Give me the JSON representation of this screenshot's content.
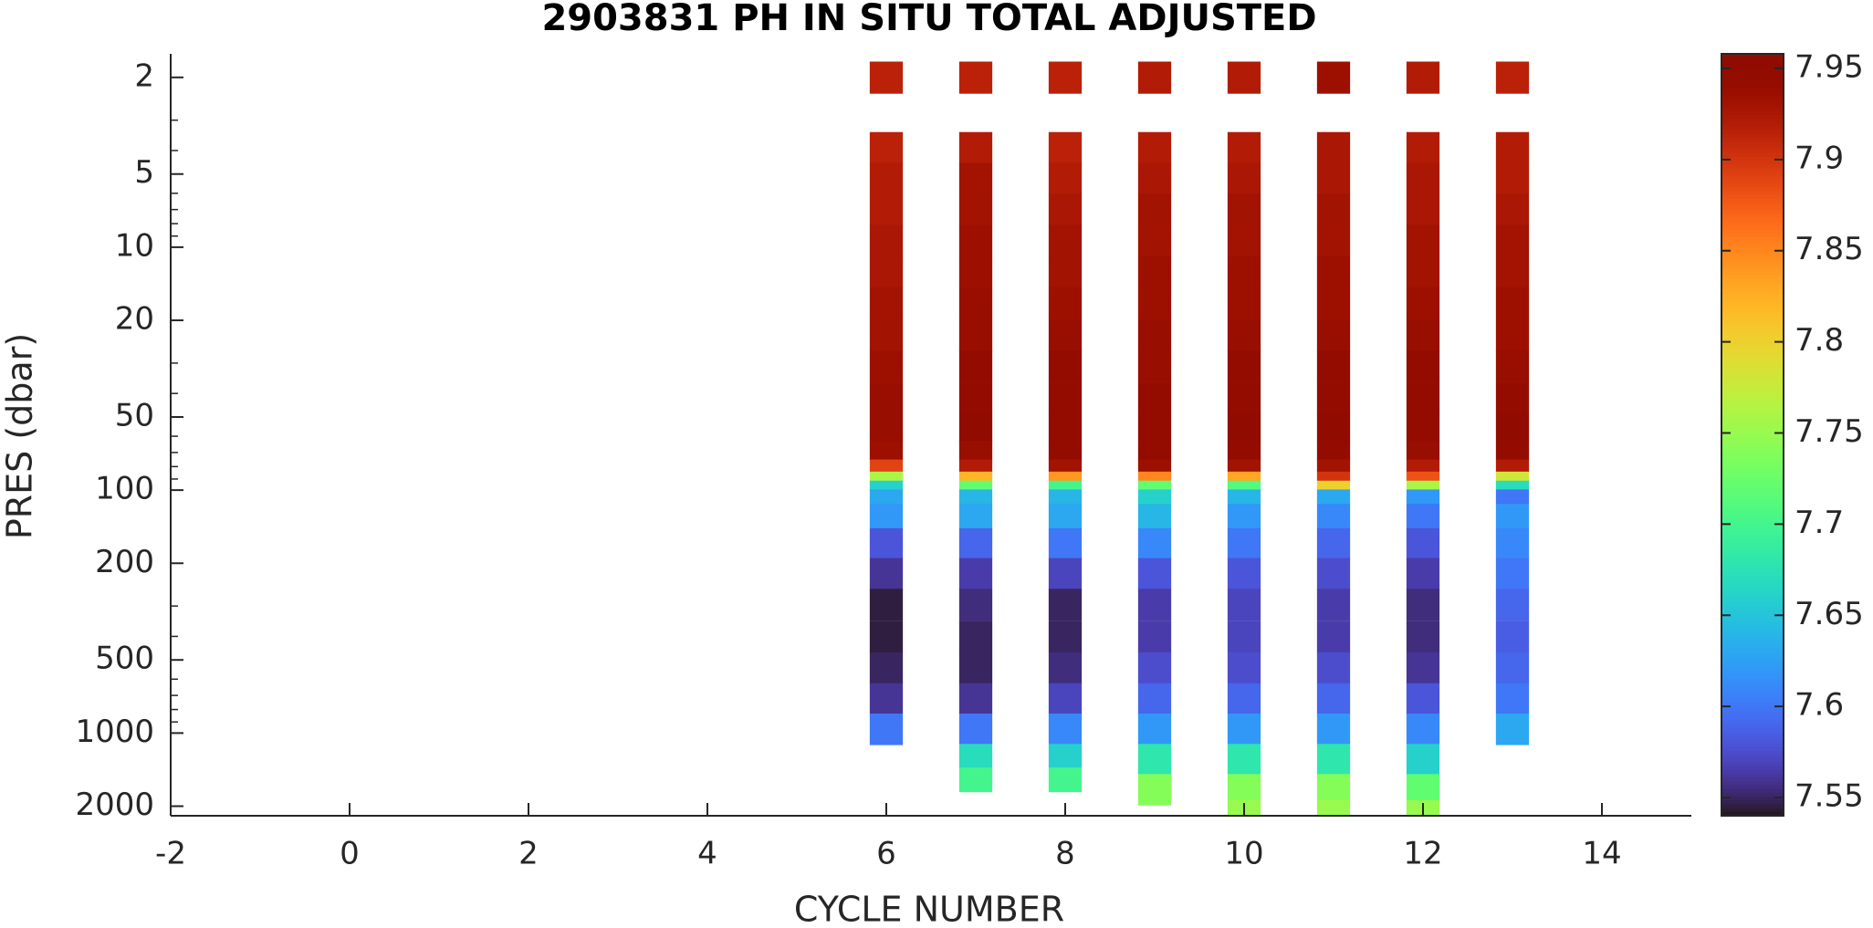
{
  "chart_data": {
    "type": "profile-heatmap",
    "title": "2903831  PH IN SITU TOTAL ADJUSTED",
    "x_label": "CYCLE NUMBER",
    "y_label": "PRES (dbar)",
    "xlim": [
      -2,
      15
    ],
    "xticks": [
      -2,
      0,
      2,
      4,
      6,
      8,
      10,
      12,
      14
    ],
    "ylim": [
      1.6,
      2190
    ],
    "yscale": "log",
    "yreversed": true,
    "yticks": [
      2,
      5,
      10,
      20,
      50,
      100,
      200,
      500,
      1000,
      2000
    ],
    "yminorticks": [
      3,
      4,
      6,
      7,
      8,
      9,
      30,
      40,
      60,
      70,
      80,
      90,
      300,
      400,
      600,
      700,
      800,
      900
    ],
    "colormap": "turbo",
    "clim": [
      7.54,
      7.958
    ],
    "cticks": [
      7.55,
      7.6,
      7.65,
      7.7,
      7.75,
      7.8,
      7.85,
      7.9,
      7.95
    ],
    "series": [
      {
        "x": 6,
        "pres": [
          2,
          3.9,
          5.2,
          7,
          9.4,
          12.6,
          17,
          23,
          31,
          42,
          56,
          70,
          80,
          88,
          95,
          104,
          125,
          165,
          220,
          295,
          400,
          540,
          720,
          960
        ],
        "values": [
          7.915,
          7.915,
          7.92,
          7.92,
          7.925,
          7.925,
          7.93,
          7.93,
          7.935,
          7.94,
          7.94,
          7.935,
          7.89,
          7.76,
          7.66,
          7.63,
          7.62,
          7.58,
          7.56,
          7.545,
          7.545,
          7.55,
          7.56,
          7.6
        ]
      },
      {
        "x": 7,
        "pres": [
          2,
          3.9,
          5.2,
          7,
          9.4,
          12.6,
          17,
          23,
          31,
          42,
          56,
          70,
          80,
          88,
          95,
          104,
          125,
          165,
          220,
          295,
          400,
          540,
          720,
          960,
          1280,
          1500
        ],
        "values": [
          7.915,
          7.92,
          7.93,
          7.93,
          7.935,
          7.935,
          7.94,
          7.94,
          7.945,
          7.945,
          7.95,
          7.94,
          7.92,
          7.82,
          7.72,
          7.64,
          7.63,
          7.59,
          7.565,
          7.555,
          7.55,
          7.55,
          7.56,
          7.6,
          7.67,
          7.7
        ]
      },
      {
        "x": 8,
        "pres": [
          2,
          3.9,
          5.2,
          7,
          9.4,
          12.6,
          17,
          23,
          31,
          42,
          56,
          70,
          80,
          88,
          95,
          104,
          125,
          165,
          220,
          295,
          400,
          540,
          720,
          960,
          1280,
          1500
        ],
        "values": [
          7.915,
          7.915,
          7.92,
          7.925,
          7.93,
          7.93,
          7.935,
          7.94,
          7.945,
          7.945,
          7.945,
          7.945,
          7.93,
          7.84,
          7.7,
          7.64,
          7.63,
          7.6,
          7.57,
          7.55,
          7.55,
          7.555,
          7.57,
          7.61,
          7.66,
          7.7
        ]
      },
      {
        "x": 9,
        "pres": [
          2,
          3.9,
          5.2,
          7,
          9.4,
          12.6,
          17,
          23,
          31,
          42,
          56,
          70,
          80,
          88,
          95,
          104,
          125,
          165,
          220,
          295,
          400,
          540,
          720,
          960,
          1280,
          1700
        ],
        "values": [
          7.92,
          7.92,
          7.925,
          7.93,
          7.93,
          7.935,
          7.935,
          7.94,
          7.94,
          7.945,
          7.945,
          7.945,
          7.935,
          7.85,
          7.72,
          7.66,
          7.64,
          7.61,
          7.58,
          7.565,
          7.565,
          7.575,
          7.59,
          7.62,
          7.68,
          7.74
        ]
      },
      {
        "x": 10,
        "pres": [
          2,
          3.9,
          5.2,
          7,
          9.4,
          12.6,
          17,
          23,
          31,
          42,
          56,
          70,
          80,
          88,
          95,
          104,
          125,
          165,
          220,
          295,
          400,
          540,
          720,
          960,
          1280,
          1700,
          2100
        ],
        "values": [
          7.92,
          7.92,
          7.925,
          7.93,
          7.93,
          7.935,
          7.935,
          7.94,
          7.945,
          7.945,
          7.95,
          7.945,
          7.93,
          7.83,
          7.71,
          7.64,
          7.62,
          7.6,
          7.58,
          7.57,
          7.57,
          7.575,
          7.59,
          7.62,
          7.68,
          7.74,
          7.75
        ]
      },
      {
        "x": 11,
        "pres": [
          2,
          3.9,
          5.2,
          7,
          9.4,
          12.6,
          17,
          23,
          31,
          42,
          56,
          70,
          80,
          88,
          95,
          104,
          125,
          165,
          220,
          295,
          400,
          540,
          720,
          960,
          1280,
          1700,
          2100
        ],
        "values": [
          7.935,
          7.925,
          7.925,
          7.93,
          7.93,
          7.935,
          7.935,
          7.94,
          7.945,
          7.945,
          7.95,
          7.945,
          7.93,
          7.9,
          7.8,
          7.63,
          7.61,
          7.59,
          7.575,
          7.565,
          7.565,
          7.575,
          7.59,
          7.62,
          7.68,
          7.74,
          7.75
        ]
      },
      {
        "x": 12,
        "pres": [
          2,
          3.9,
          5.2,
          7,
          9.4,
          12.6,
          17,
          23,
          31,
          42,
          56,
          70,
          80,
          88,
          95,
          104,
          125,
          165,
          220,
          295,
          400,
          540,
          720,
          960,
          1280,
          1700,
          2100
        ],
        "values": [
          7.92,
          7.92,
          7.925,
          7.925,
          7.93,
          7.93,
          7.935,
          7.94,
          7.945,
          7.945,
          7.945,
          7.94,
          7.92,
          7.88,
          7.76,
          7.62,
          7.6,
          7.58,
          7.565,
          7.555,
          7.555,
          7.56,
          7.58,
          7.61,
          7.66,
          7.72,
          7.75
        ]
      },
      {
        "x": 13,
        "pres": [
          2,
          3.9,
          5.2,
          7,
          9.4,
          12.6,
          17,
          23,
          31,
          42,
          56,
          70,
          80,
          88,
          95,
          104,
          125,
          165,
          220,
          295,
          400,
          540,
          720,
          960
        ],
        "values": [
          7.915,
          7.92,
          7.92,
          7.925,
          7.93,
          7.93,
          7.935,
          7.935,
          7.94,
          7.945,
          7.95,
          7.945,
          7.92,
          7.78,
          7.67,
          7.6,
          7.62,
          7.61,
          7.6,
          7.59,
          7.585,
          7.59,
          7.6,
          7.63
        ]
      }
    ]
  }
}
